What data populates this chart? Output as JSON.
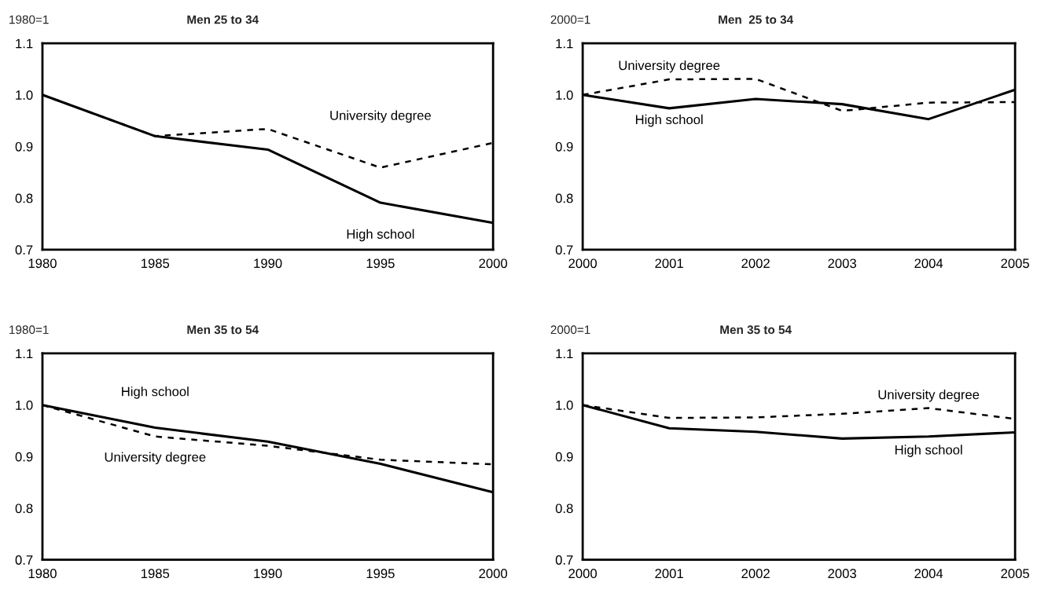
{
  "chart_data": [
    {
      "type": "line",
      "title": "Men 25 to 34",
      "ylabel": "1980=1",
      "x": [
        1980,
        1985,
        1990,
        1995,
        2000
      ],
      "xlim": [
        1980,
        2000
      ],
      "xticks": [
        1980,
        1985,
        1990,
        1995,
        2000
      ],
      "ylim": [
        0.7,
        1.1
      ],
      "yticks": [
        {
          "value": 0.7,
          "label": "0.7"
        },
        {
          "value": 0.8,
          "label": "0.8"
        },
        {
          "value": 0.9,
          "label": "0.9"
        },
        {
          "value": 1.0,
          "label": "1.0"
        },
        {
          "value": 1.1,
          "label": "1.1"
        }
      ],
      "grid": false,
      "legend": false,
      "series": [
        {
          "name": "High school",
          "color": "#000000",
          "line_style": "solid",
          "values": [
            1.0,
            0.92,
            0.894,
            0.791,
            0.752
          ]
        },
        {
          "name": "University degree",
          "color": "#000000",
          "line_style": "dashed",
          "values": [
            1.0,
            0.92,
            0.934,
            0.859,
            0.907
          ]
        }
      ]
    },
    {
      "type": "line",
      "title": "Men  25 to 34",
      "ylabel": "2000=1",
      "x": [
        2000,
        2001,
        2002,
        2003,
        2004,
        2005
      ],
      "xlim": [
        2000,
        2005
      ],
      "xticks": [
        2000,
        2001,
        2002,
        2003,
        2004,
        2005
      ],
      "ylim": [
        0.7,
        1.1
      ],
      "yticks": [
        {
          "value": 0.7,
          "label": "0.7"
        },
        {
          "value": 0.8,
          "label": "0.8"
        },
        {
          "value": 0.9,
          "label": "0.9"
        },
        {
          "value": 1.0,
          "label": "1.0"
        },
        {
          "value": 1.1,
          "label": "1.1"
        }
      ],
      "grid": false,
      "legend": false,
      "series": [
        {
          "name": "High school",
          "color": "#000000",
          "line_style": "solid",
          "values": [
            1.0,
            0.974,
            0.992,
            0.982,
            0.953,
            1.01
          ]
        },
        {
          "name": "University degree",
          "color": "#000000",
          "line_style": "dashed",
          "values": [
            1.0,
            1.03,
            1.031,
            0.969,
            0.985,
            0.986
          ]
        }
      ]
    },
    {
      "type": "line",
      "title": "Men 35 to 54",
      "ylabel": "1980=1",
      "x": [
        1980,
        1985,
        1990,
        1995,
        2000
      ],
      "xlim": [
        1980,
        2000
      ],
      "xticks": [
        1980,
        1985,
        1990,
        1995,
        2000
      ],
      "ylim": [
        0.7,
        1.1
      ],
      "yticks": [
        {
          "value": 0.7,
          "label": "0.7"
        },
        {
          "value": 0.8,
          "label": "0.8"
        },
        {
          "value": 0.9,
          "label": "0.9"
        },
        {
          "value": 1.0,
          "label": "1.0"
        },
        {
          "value": 1.1,
          "label": "1.1"
        }
      ],
      "grid": false,
      "legend": false,
      "series": [
        {
          "name": "High school",
          "color": "#000000",
          "line_style": "solid",
          "values": [
            1.0,
            0.956,
            0.929,
            0.886,
            0.831
          ]
        },
        {
          "name": "University degree",
          "color": "#000000",
          "line_style": "dashed",
          "values": [
            1.0,
            0.939,
            0.921,
            0.894,
            0.885
          ]
        }
      ]
    },
    {
      "type": "line",
      "title": "Men 35 to 54",
      "ylabel": "2000=1",
      "x": [
        2000,
        2001,
        2002,
        2003,
        2004,
        2005
      ],
      "xlim": [
        2000,
        2005
      ],
      "xticks": [
        2000,
        2001,
        2002,
        2003,
        2004,
        2005
      ],
      "ylim": [
        0.7,
        1.1
      ],
      "yticks": [
        {
          "value": 0.7,
          "label": "0.7"
        },
        {
          "value": 0.8,
          "label": "0.8"
        },
        {
          "value": 0.9,
          "label": "0.9"
        },
        {
          "value": 1.0,
          "label": "1.0"
        },
        {
          "value": 1.1,
          "label": "1.1"
        }
      ],
      "grid": false,
      "legend": false,
      "series": [
        {
          "name": "High school",
          "color": "#000000",
          "line_style": "solid",
          "values": [
            1.0,
            0.955,
            0.948,
            0.935,
            0.939,
            0.947
          ]
        },
        {
          "name": "University degree",
          "color": "#000000",
          "line_style": "dashed",
          "values": [
            1.0,
            0.975,
            0.976,
            0.983,
            0.994,
            0.973
          ]
        }
      ]
    }
  ]
}
